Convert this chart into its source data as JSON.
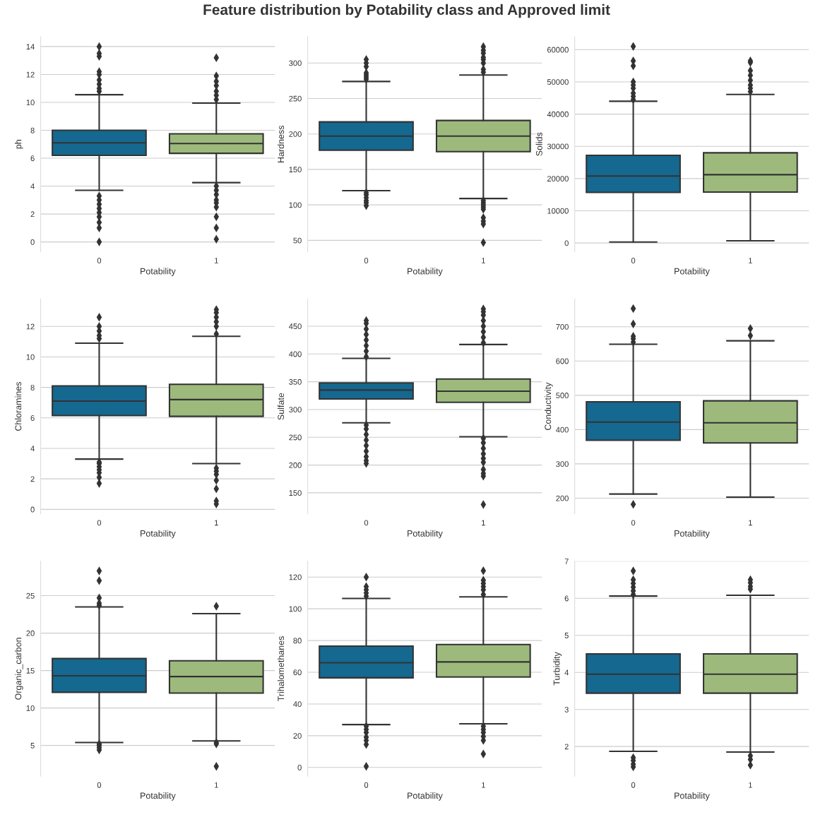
{
  "chart_data": [
    {
      "type": "box",
      "title": "Feature distribution by Potability class and Approved limit",
      "xlabel": "Potability",
      "ylabel": "ph",
      "categories": [
        "0",
        "1"
      ],
      "colors": [
        "#15688f",
        "#9dba7c"
      ],
      "grid": "y",
      "marker": "diamond",
      "ylim": [
        -0.7,
        14.7
      ],
      "yticks": [
        0,
        2,
        4,
        6,
        8,
        10,
        12,
        14
      ],
      "boxes": [
        {
          "low": 3.7,
          "q1": 6.2,
          "median": 7.1,
          "q3": 8.0,
          "high": 10.55,
          "outliers": [
            0,
            1.0,
            1.4,
            1.8,
            2.1,
            2.4,
            2.7,
            3.0,
            3.3,
            10.8,
            11.0,
            11.3,
            11.6,
            12.0,
            12.2,
            13.3,
            13.5,
            14.0
          ]
        },
        {
          "low": 4.25,
          "q1": 6.35,
          "median": 7.05,
          "q3": 7.75,
          "high": 9.95,
          "outliers": [
            0.2,
            1.0,
            1.8,
            2.5,
            2.8,
            3.0,
            3.4,
            3.7,
            4.0,
            10.2,
            10.5,
            10.8,
            11.2,
            11.5,
            11.9,
            13.2
          ]
        }
      ]
    },
    {
      "type": "box",
      "xlabel": "Potability",
      "ylabel": "Hardness",
      "categories": [
        "0",
        "1"
      ],
      "colors": [
        "#15688f",
        "#9dba7c"
      ],
      "grid": "y",
      "marker": "diamond",
      "ylim": [
        34,
        337
      ],
      "yticks": [
        50,
        100,
        150,
        200,
        250,
        300
      ],
      "boxes": [
        {
          "low": 120,
          "q1": 177,
          "median": 197,
          "q3": 217,
          "high": 274,
          "outliers": [
            99,
            103,
            106,
            110,
            114,
            117,
            277,
            280,
            283,
            286,
            295,
            300,
            305
          ]
        },
        {
          "low": 109,
          "q1": 175,
          "median": 197,
          "q3": 219,
          "high": 283,
          "outliers": [
            47,
            73,
            77,
            82,
            94,
            97,
            100,
            103,
            106,
            287,
            291,
            300,
            305,
            308,
            314,
            318,
            323
          ]
        }
      ]
    },
    {
      "type": "box",
      "xlabel": "Potability",
      "ylabel": "Solids",
      "categories": [
        "0",
        "1"
      ],
      "colors": [
        "#15688f",
        "#9dba7c"
      ],
      "grid": "y",
      "marker": "diamond",
      "ylim": [
        -2700,
        64000
      ],
      "yticks": [
        0,
        10000,
        20000,
        30000,
        40000,
        50000,
        60000
      ],
      "boxes": [
        {
          "low": 300,
          "q1": 15700,
          "median": 20800,
          "q3": 27200,
          "high": 44000,
          "outliers": [
            44500,
            45500,
            46500,
            48000,
            49000,
            50000,
            55000,
            56500,
            61000
          ]
        },
        {
          "low": 700,
          "q1": 15800,
          "median": 21200,
          "q3": 28000,
          "high": 46100,
          "outliers": [
            47000,
            48000,
            49000,
            50500,
            52000,
            53500,
            56000,
            56500
          ]
        }
      ]
    },
    {
      "type": "box",
      "xlabel": "Potability",
      "ylabel": "Chloramines",
      "categories": [
        "0",
        "1"
      ],
      "colors": [
        "#15688f",
        "#9dba7c"
      ],
      "grid": "y",
      "marker": "diamond",
      "ylim": [
        -0.3,
        13.8
      ],
      "yticks": [
        0,
        2,
        4,
        6,
        8,
        10,
        12
      ],
      "boxes": [
        {
          "low": 3.3,
          "q1": 6.15,
          "median": 7.1,
          "q3": 8.1,
          "high": 10.9,
          "outliers": [
            1.7,
            2.1,
            2.4,
            2.6,
            2.8,
            3.0,
            3.1,
            11.2,
            11.4,
            11.7,
            12.0,
            12.6
          ]
        },
        {
          "low": 3.0,
          "q1": 6.1,
          "median": 7.2,
          "q3": 8.2,
          "high": 11.35,
          "outliers": [
            0.35,
            0.55,
            1.35,
            1.9,
            2.3,
            2.5,
            2.7,
            11.5,
            12.0,
            12.3,
            12.6,
            12.9,
            13.1
          ]
        }
      ]
    },
    {
      "type": "box",
      "xlabel": "Potability",
      "ylabel": "Sulfate",
      "categories": [
        "0",
        "1"
      ],
      "colors": [
        "#15688f",
        "#9dba7c"
      ],
      "grid": "y",
      "marker": "diamond",
      "ylim": [
        112,
        499
      ],
      "yticks": [
        150,
        200,
        250,
        300,
        350,
        400,
        450
      ],
      "boxes": [
        {
          "low": 276,
          "q1": 319,
          "median": 335,
          "q3": 348,
          "high": 392,
          "outliers": [
            203,
            208,
            215,
            225,
            235,
            245,
            255,
            265,
            272,
            395,
            405,
            415,
            425,
            435,
            445,
            455,
            460
          ]
        },
        {
          "low": 251,
          "q1": 313,
          "median": 333,
          "q3": 355,
          "high": 417,
          "outliers": [
            129,
            180,
            185,
            192,
            205,
            212,
            220,
            230,
            240,
            248,
            420,
            430,
            440,
            450,
            460,
            470,
            476,
            481
          ]
        }
      ]
    },
    {
      "type": "box",
      "xlabel": "Potability",
      "ylabel": "Conductivity",
      "categories": [
        "0",
        "1"
      ],
      "colors": [
        "#15688f",
        "#9dba7c"
      ],
      "grid": "y",
      "marker": "diamond",
      "ylim": [
        154,
        781
      ],
      "yticks": [
        200,
        300,
        400,
        500,
        600,
        700
      ],
      "boxes": [
        {
          "low": 212,
          "q1": 369,
          "median": 422,
          "q3": 481,
          "high": 649,
          "outliers": [
            182,
            655,
            665,
            672,
            708,
            753
          ]
        },
        {
          "low": 203,
          "q1": 361,
          "median": 420,
          "q3": 484,
          "high": 659,
          "outliers": [
            674,
            695
          ]
        }
      ]
    },
    {
      "type": "box",
      "xlabel": "Potability",
      "ylabel": "Organic_carbon",
      "categories": [
        "0",
        "1"
      ],
      "colors": [
        "#15688f",
        "#9dba7c"
      ],
      "grid": "y",
      "marker": "diamond",
      "ylim": [
        0.9,
        29.6
      ],
      "yticks": [
        5,
        10,
        15,
        20,
        25
      ],
      "boxes": [
        {
          "low": 5.4,
          "q1": 12.1,
          "median": 14.3,
          "q3": 16.6,
          "high": 23.5,
          "outliers": [
            4.4,
            4.7,
            5.0,
            5.2,
            23.7,
            24.0,
            24.7,
            27.0,
            28.3
          ]
        },
        {
          "low": 5.6,
          "q1": 12.0,
          "median": 14.2,
          "q3": 16.3,
          "high": 22.6,
          "outliers": [
            2.2,
            5.2,
            5.4,
            23.6
          ]
        }
      ]
    },
    {
      "type": "box",
      "xlabel": "Potability",
      "ylabel": "Trihalomethanes",
      "categories": [
        "0",
        "1"
      ],
      "colors": [
        "#15688f",
        "#9dba7c"
      ],
      "grid": "y",
      "marker": "diamond",
      "ylim": [
        -5.5,
        130
      ],
      "yticks": [
        0,
        20,
        40,
        60,
        80,
        100,
        120
      ],
      "boxes": [
        {
          "low": 27,
          "q1": 56.5,
          "median": 66,
          "q3": 76.5,
          "high": 106.5,
          "outliers": [
            0.7,
            14.5,
            17,
            19,
            22,
            24,
            26,
            108,
            110,
            112,
            114,
            120
          ]
        },
        {
          "low": 27.5,
          "q1": 57,
          "median": 66.5,
          "q3": 77.5,
          "high": 107.5,
          "outliers": [
            8.5,
            17,
            19.5,
            22,
            24,
            26,
            109,
            112,
            114,
            116,
            118,
            124
          ]
        }
      ]
    },
    {
      "type": "box",
      "xlabel": "Potability",
      "ylabel": "Turbidity",
      "categories": [
        "0",
        "1"
      ],
      "colors": [
        "#15688f",
        "#9dba7c"
      ],
      "grid": "y",
      "marker": "diamond",
      "ylim": [
        1.2,
        7.0
      ],
      "yticks": [
        2,
        3,
        4,
        5,
        6,
        7
      ],
      "boxes": [
        {
          "low": 1.87,
          "q1": 3.44,
          "median": 3.95,
          "q3": 4.5,
          "high": 6.06,
          "outliers": [
            1.45,
            1.52,
            1.62,
            1.7,
            6.1,
            6.2,
            6.3,
            6.4,
            6.5,
            6.74
          ]
        },
        {
          "low": 1.85,
          "q1": 3.44,
          "median": 3.95,
          "q3": 4.5,
          "high": 6.08,
          "outliers": [
            1.5,
            1.65,
            1.75,
            6.25,
            6.32,
            6.42,
            6.5
          ]
        }
      ]
    }
  ]
}
